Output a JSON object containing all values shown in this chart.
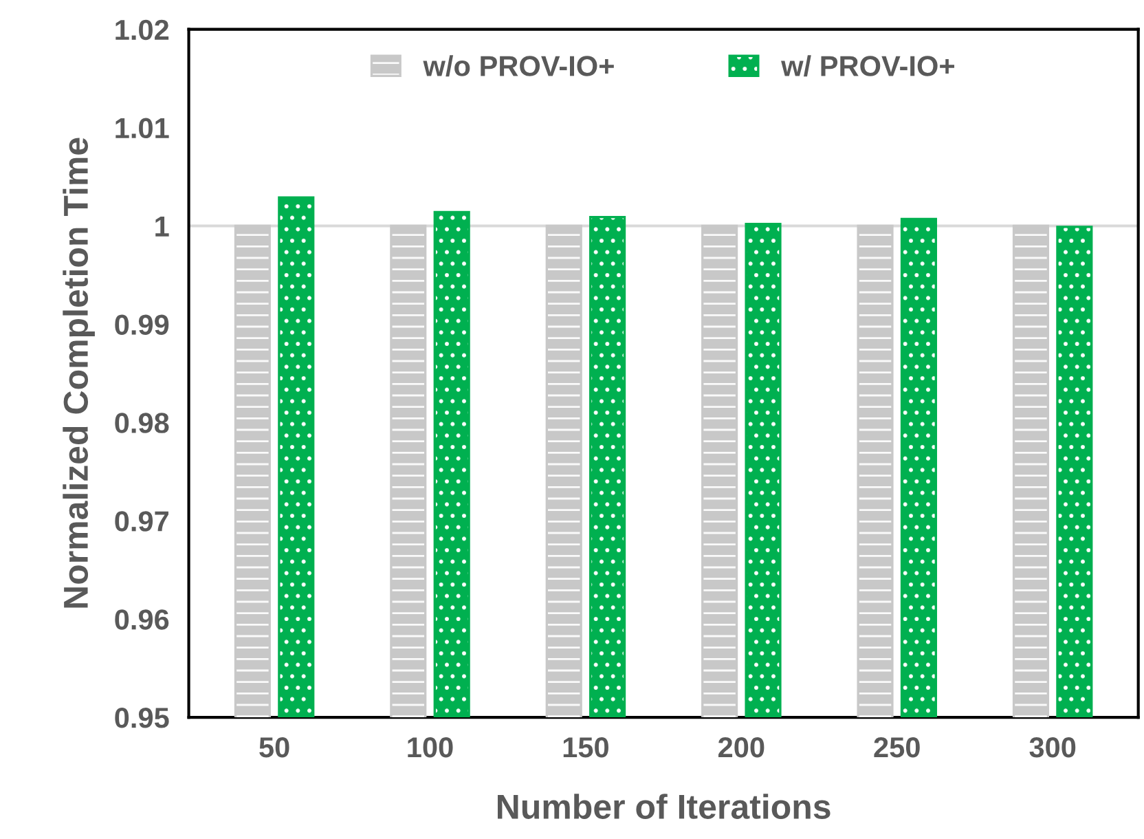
{
  "chart_data": {
    "type": "bar",
    "xlabel": "Number of Iterations",
    "ylabel": "Normalized Completion Time",
    "categories": [
      "50",
      "100",
      "150",
      "200",
      "250",
      "300"
    ],
    "series": [
      {
        "name": "w/o PROV-IO+",
        "color": "#c8c8c8",
        "values": [
          1,
          1,
          1,
          1,
          1,
          1
        ]
      },
      {
        "name": "w/ PROV-IO+",
        "color": "#00b050",
        "values": [
          1.0029,
          1.0014,
          1.0009,
          1.0002,
          1.0007,
          0.9999
        ]
      }
    ],
    "ylim": [
      0.95,
      1.02
    ],
    "yticks": [
      {
        "value": 0.95,
        "label": "0.95"
      },
      {
        "value": 0.96,
        "label": "0.96"
      },
      {
        "value": 0.97,
        "label": "0.97"
      },
      {
        "value": 0.98,
        "label": "0.98"
      },
      {
        "value": 0.99,
        "label": "0.99"
      },
      {
        "value": 1,
        "label": "1"
      },
      {
        "value": 1.01,
        "label": "1.01"
      },
      {
        "value": 1.02,
        "label": "1.02"
      }
    ],
    "ref_lines": [
      {
        "axis": "y",
        "value": 1,
        "color": "#d9d9d9"
      }
    ],
    "grid": false,
    "legend": "top"
  }
}
